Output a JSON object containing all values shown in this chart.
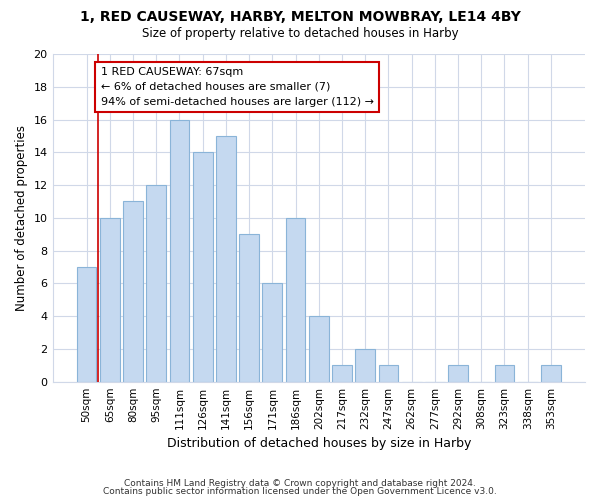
{
  "title1": "1, RED CAUSEWAY, HARBY, MELTON MOWBRAY, LE14 4BY",
  "title2": "Size of property relative to detached houses in Harby",
  "xlabel": "Distribution of detached houses by size in Harby",
  "ylabel": "Number of detached properties",
  "categories": [
    "50sqm",
    "65sqm",
    "80sqm",
    "95sqm",
    "111sqm",
    "126sqm",
    "141sqm",
    "156sqm",
    "171sqm",
    "186sqm",
    "202sqm",
    "217sqm",
    "232sqm",
    "247sqm",
    "262sqm",
    "277sqm",
    "292sqm",
    "308sqm",
    "323sqm",
    "338sqm",
    "353sqm"
  ],
  "values": [
    7,
    10,
    11,
    12,
    16,
    14,
    15,
    9,
    6,
    10,
    4,
    1,
    2,
    1,
    0,
    0,
    1,
    0,
    1,
    0,
    1
  ],
  "bar_color": "#c5d9f0",
  "bar_edge_color": "#8ab4d8",
  "vline_color": "#cc0000",
  "annotation_line1": "1 RED CAUSEWAY: 67sqm",
  "annotation_line2": "← 6% of detached houses are smaller (7)",
  "annotation_line3": "94% of semi-detached houses are larger (112) →",
  "annotation_box_color": "#ffffff",
  "annotation_box_edge": "#cc0000",
  "ylim": [
    0,
    20
  ],
  "yticks": [
    0,
    2,
    4,
    6,
    8,
    10,
    12,
    14,
    16,
    18,
    20
  ],
  "footer1": "Contains HM Land Registry data © Crown copyright and database right 2024.",
  "footer2": "Contains public sector information licensed under the Open Government Licence v3.0.",
  "bg_color": "#ffffff",
  "plot_bg_color": "#ffffff",
  "grid_color": "#d0d8e8"
}
